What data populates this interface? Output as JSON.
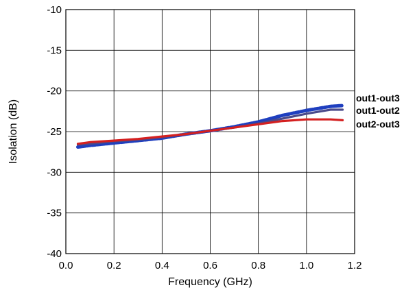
{
  "chart_data": {
    "type": "line",
    "title": "",
    "xlabel": "Frequency (GHz)",
    "ylabel": "Isolation (dB)",
    "xlim": [
      0.0,
      1.2
    ],
    "ylim": [
      -40,
      -10
    ],
    "xticks": [
      "0.0",
      "0.2",
      "0.4",
      "0.6",
      "0.8",
      "1.0",
      "1.2"
    ],
    "yticks": [
      "-10",
      "-15",
      "-20",
      "-25",
      "-30",
      "-35",
      "-40"
    ],
    "xtick_values": [
      0.0,
      0.2,
      0.4,
      0.6,
      0.8,
      1.0,
      1.2
    ],
    "ytick_values": [
      -10,
      -15,
      -20,
      -25,
      -30,
      -35,
      -40
    ],
    "grid": true,
    "legend": "series names labeled at right end of each line",
    "series": [
      {
        "name": "out1-out3",
        "color": "#1f3fbf",
        "x": [
          0.05,
          0.1,
          0.2,
          0.3,
          0.4,
          0.5,
          0.6,
          0.7,
          0.8,
          0.9,
          1.0,
          1.1,
          1.15
        ],
        "y": [
          -26.9,
          -26.7,
          -26.4,
          -26.1,
          -25.8,
          -25.3,
          -24.9,
          -24.4,
          -23.8,
          -23.0,
          -22.4,
          -21.9,
          -21.8
        ]
      },
      {
        "name": "out1-out2",
        "color": "#4a4a8a",
        "x": [
          0.05,
          0.1,
          0.2,
          0.3,
          0.4,
          0.5,
          0.6,
          0.7,
          0.8,
          0.9,
          1.0,
          1.1,
          1.15
        ],
        "y": [
          -26.6,
          -26.5,
          -26.2,
          -26.0,
          -25.7,
          -25.3,
          -24.9,
          -24.5,
          -24.0,
          -23.4,
          -22.8,
          -22.3,
          -22.3
        ]
      },
      {
        "name": "out2-out3",
        "color": "#d42020",
        "x": [
          0.05,
          0.1,
          0.2,
          0.3,
          0.4,
          0.5,
          0.6,
          0.7,
          0.8,
          0.9,
          1.0,
          1.1,
          1.15
        ],
        "y": [
          -26.5,
          -26.3,
          -26.1,
          -25.9,
          -25.6,
          -25.3,
          -24.9,
          -24.5,
          -24.1,
          -23.7,
          -23.5,
          -23.5,
          -23.6
        ]
      }
    ]
  }
}
